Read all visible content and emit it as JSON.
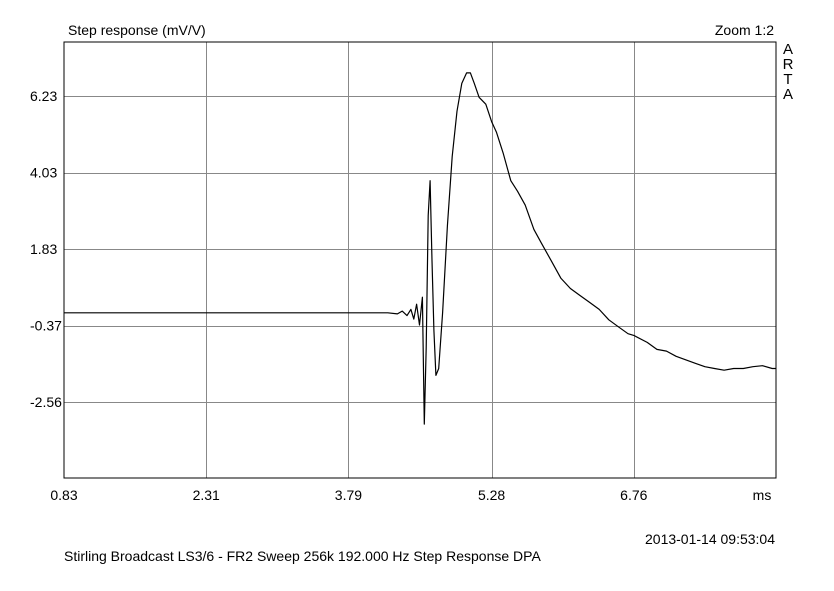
{
  "header": {
    "title": "Step response (mV/V)",
    "zoom": "Zoom 1:2",
    "watermark_letters": [
      "A",
      "R",
      "T",
      "A"
    ]
  },
  "footer": {
    "timestamp": "2013-01-14  09:53:04",
    "caption": "Stirling Broadcast LS3/6 - FR2 Sweep 256k 192.000   Hz Step Response     DPA"
  },
  "colors": {
    "background": "#ffffff",
    "grid": "#888888",
    "trace": "#000000",
    "frame": "#000000"
  },
  "chart_data": {
    "type": "line",
    "title": "Step response (mV/V)",
    "xlabel": "ms",
    "ylabel": "",
    "xlim": [
      0.83,
      8.24
    ],
    "ylim": [
      -4.75,
      7.79
    ],
    "x_ticks": [
      0.83,
      2.31,
      3.79,
      5.28,
      6.76
    ],
    "x_tick_labels": [
      "0.83",
      "2.31",
      "3.79",
      "5.28",
      "6.76"
    ],
    "x_unit_label": "ms",
    "y_ticks": [
      6.23,
      4.03,
      1.83,
      -0.37,
      -2.56
    ],
    "y_tick_labels": [
      "6.23",
      "4.03",
      "1.83",
      "-0.37",
      "-2.56"
    ],
    "grid": true,
    "series": [
      {
        "values": [
          [
            0.83,
            0.0
          ],
          [
            1.5,
            0.0
          ],
          [
            2.31,
            0.0
          ],
          [
            3.0,
            0.0
          ],
          [
            3.79,
            0.0
          ],
          [
            4.2,
            0.0
          ],
          [
            4.3,
            -0.03
          ],
          [
            4.35,
            0.05
          ],
          [
            4.4,
            -0.08
          ],
          [
            4.44,
            0.1
          ],
          [
            4.47,
            -0.18
          ],
          [
            4.5,
            0.25
          ],
          [
            4.53,
            -0.35
          ],
          [
            4.56,
            0.45
          ],
          [
            4.58,
            -3.2
          ],
          [
            4.6,
            -1.0
          ],
          [
            4.62,
            2.8
          ],
          [
            4.64,
            3.8
          ],
          [
            4.66,
            1.5
          ],
          [
            4.68,
            -0.5
          ],
          [
            4.7,
            -1.8
          ],
          [
            4.73,
            -1.6
          ],
          [
            4.77,
            0.0
          ],
          [
            4.82,
            2.5
          ],
          [
            4.87,
            4.5
          ],
          [
            4.92,
            5.8
          ],
          [
            4.97,
            6.6
          ],
          [
            5.02,
            6.9
          ],
          [
            5.06,
            6.9
          ],
          [
            5.1,
            6.6
          ],
          [
            5.15,
            6.2
          ],
          [
            5.22,
            6.0
          ],
          [
            5.28,
            5.5
          ],
          [
            5.33,
            5.2
          ],
          [
            5.4,
            4.6
          ],
          [
            5.48,
            3.8
          ],
          [
            5.55,
            3.5
          ],
          [
            5.63,
            3.1
          ],
          [
            5.72,
            2.4
          ],
          [
            5.8,
            2.0
          ],
          [
            5.9,
            1.5
          ],
          [
            6.0,
            1.0
          ],
          [
            6.1,
            0.7
          ],
          [
            6.2,
            0.5
          ],
          [
            6.3,
            0.3
          ],
          [
            6.4,
            0.1
          ],
          [
            6.5,
            -0.2
          ],
          [
            6.6,
            -0.4
          ],
          [
            6.7,
            -0.6
          ],
          [
            6.76,
            -0.65
          ],
          [
            6.9,
            -0.85
          ],
          [
            7.0,
            -1.05
          ],
          [
            7.1,
            -1.1
          ],
          [
            7.2,
            -1.25
          ],
          [
            7.3,
            -1.35
          ],
          [
            7.4,
            -1.45
          ],
          [
            7.5,
            -1.55
          ],
          [
            7.6,
            -1.6
          ],
          [
            7.7,
            -1.65
          ],
          [
            7.8,
            -1.6
          ],
          [
            7.9,
            -1.6
          ],
          [
            8.0,
            -1.55
          ],
          [
            8.1,
            -1.52
          ],
          [
            8.2,
            -1.6
          ],
          [
            8.24,
            -1.6
          ]
        ]
      }
    ]
  }
}
